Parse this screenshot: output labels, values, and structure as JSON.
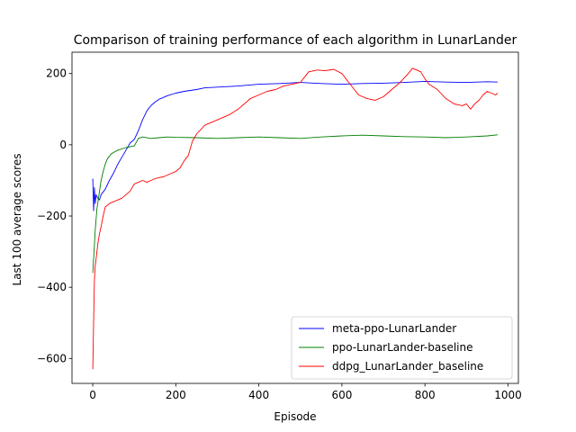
{
  "chart_data": {
    "type": "line",
    "title": "Comparison of training performance of each algorithm in LunarLander",
    "xlabel": "Episode",
    "ylabel": "Last 100 average scores",
    "xlim": [
      -50,
      1025
    ],
    "ylim": [
      -670,
      260
    ],
    "xticks": [
      0,
      200,
      400,
      600,
      800,
      1000
    ],
    "yticks": [
      -600,
      -400,
      -200,
      0,
      200
    ],
    "xtick_labels": [
      "0",
      "200",
      "400",
      "600",
      "800",
      "1000"
    ],
    "ytick_labels": [
      "−600",
      "−400",
      "−200",
      "0",
      "200"
    ],
    "grid": false,
    "legend_position": "lower-right",
    "series": [
      {
        "name": "meta-ppo-LunarLander",
        "color": "#0000ff",
        "points": [
          [
            0,
            -95
          ],
          [
            2,
            -185
          ],
          [
            4,
            -120
          ],
          [
            6,
            -165
          ],
          [
            8,
            -140
          ],
          [
            12,
            -150
          ],
          [
            16,
            -155
          ],
          [
            20,
            -140
          ],
          [
            30,
            -125
          ],
          [
            40,
            -100
          ],
          [
            50,
            -80
          ],
          [
            60,
            -55
          ],
          [
            70,
            -35
          ],
          [
            80,
            -15
          ],
          [
            90,
            5
          ],
          [
            100,
            15
          ],
          [
            110,
            40
          ],
          [
            120,
            70
          ],
          [
            130,
            95
          ],
          [
            140,
            110
          ],
          [
            150,
            120
          ],
          [
            160,
            128
          ],
          [
            170,
            133
          ],
          [
            180,
            138
          ],
          [
            200,
            145
          ],
          [
            220,
            150
          ],
          [
            250,
            155
          ],
          [
            270,
            160
          ],
          [
            300,
            162
          ],
          [
            350,
            165
          ],
          [
            400,
            170
          ],
          [
            450,
            172
          ],
          [
            500,
            175
          ],
          [
            550,
            172
          ],
          [
            600,
            170
          ],
          [
            650,
            172
          ],
          [
            700,
            173
          ],
          [
            750,
            175
          ],
          [
            800,
            178
          ],
          [
            850,
            176
          ],
          [
            900,
            175
          ],
          [
            950,
            177
          ],
          [
            975,
            176
          ]
        ]
      },
      {
        "name": "ppo-LunarLander-baseline",
        "color": "#008000",
        "points": [
          [
            0,
            -360
          ],
          [
            3,
            -300
          ],
          [
            6,
            -240
          ],
          [
            10,
            -180
          ],
          [
            15,
            -140
          ],
          [
            20,
            -100
          ],
          [
            25,
            -75
          ],
          [
            30,
            -55
          ],
          [
            35,
            -40
          ],
          [
            45,
            -25
          ],
          [
            60,
            -15
          ],
          [
            80,
            -8
          ],
          [
            100,
            -3
          ],
          [
            110,
            18
          ],
          [
            120,
            22
          ],
          [
            140,
            18
          ],
          [
            160,
            20
          ],
          [
            180,
            22
          ],
          [
            200,
            21
          ],
          [
            250,
            20
          ],
          [
            300,
            18
          ],
          [
            350,
            20
          ],
          [
            400,
            22
          ],
          [
            450,
            20
          ],
          [
            500,
            18
          ],
          [
            550,
            22
          ],
          [
            600,
            25
          ],
          [
            650,
            27
          ],
          [
            700,
            25
          ],
          [
            750,
            23
          ],
          [
            800,
            22
          ],
          [
            850,
            20
          ],
          [
            900,
            22
          ],
          [
            950,
            25
          ],
          [
            975,
            28
          ]
        ]
      },
      {
        "name": "ddpg_LunarLander_baseline",
        "color": "#ff0000",
        "points": [
          [
            0,
            -630
          ],
          [
            2,
            -500
          ],
          [
            4,
            -380
          ],
          [
            6,
            -340
          ],
          [
            8,
            -320
          ],
          [
            12,
            -280
          ],
          [
            16,
            -250
          ],
          [
            20,
            -230
          ],
          [
            25,
            -200
          ],
          [
            30,
            -175
          ],
          [
            40,
            -165
          ],
          [
            50,
            -160
          ],
          [
            60,
            -155
          ],
          [
            70,
            -150
          ],
          [
            80,
            -140
          ],
          [
            90,
            -130
          ],
          [
            100,
            -110
          ],
          [
            110,
            -105
          ],
          [
            120,
            -100
          ],
          [
            130,
            -105
          ],
          [
            140,
            -100
          ],
          [
            150,
            -95
          ],
          [
            160,
            -92
          ],
          [
            170,
            -90
          ],
          [
            180,
            -85
          ],
          [
            190,
            -80
          ],
          [
            200,
            -75
          ],
          [
            210,
            -65
          ],
          [
            220,
            -45
          ],
          [
            230,
            -30
          ],
          [
            240,
            10
          ],
          [
            250,
            30
          ],
          [
            270,
            55
          ],
          [
            290,
            65
          ],
          [
            310,
            75
          ],
          [
            330,
            85
          ],
          [
            350,
            100
          ],
          [
            370,
            120
          ],
          [
            380,
            130
          ],
          [
            400,
            140
          ],
          [
            420,
            150
          ],
          [
            440,
            155
          ],
          [
            460,
            165
          ],
          [
            480,
            170
          ],
          [
            500,
            175
          ],
          [
            510,
            190
          ],
          [
            520,
            205
          ],
          [
            540,
            210
          ],
          [
            560,
            208
          ],
          [
            580,
            212
          ],
          [
            600,
            200
          ],
          [
            610,
            185
          ],
          [
            620,
            170
          ],
          [
            640,
            140
          ],
          [
            660,
            130
          ],
          [
            680,
            125
          ],
          [
            700,
            135
          ],
          [
            720,
            155
          ],
          [
            740,
            175
          ],
          [
            760,
            200
          ],
          [
            770,
            215
          ],
          [
            780,
            210
          ],
          [
            790,
            205
          ],
          [
            800,
            185
          ],
          [
            810,
            170
          ],
          [
            830,
            155
          ],
          [
            850,
            130
          ],
          [
            870,
            115
          ],
          [
            890,
            110
          ],
          [
            900,
            115
          ],
          [
            910,
            100
          ],
          [
            920,
            115
          ],
          [
            930,
            125
          ],
          [
            940,
            140
          ],
          [
            950,
            150
          ],
          [
            960,
            145
          ],
          [
            970,
            140
          ],
          [
            975,
            145
          ]
        ]
      }
    ]
  }
}
